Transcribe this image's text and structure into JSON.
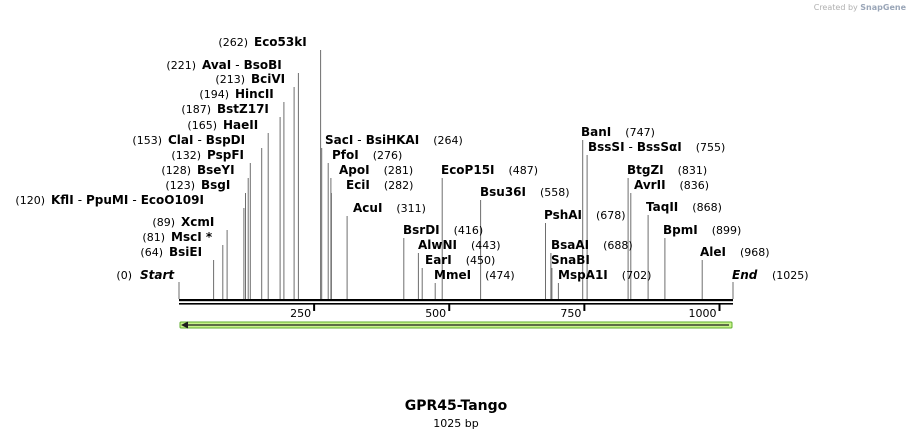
{
  "credit": {
    "prefix": "Created by",
    "brand": "SnapGene"
  },
  "title": "GPR45-Tango",
  "length_label": "1025 bp",
  "sequence_length": 1025,
  "colors": {
    "feature_fill": "#c9f28c",
    "feature_stroke": "#5fae2e",
    "feature_arrow": "#1d1d1d"
  },
  "feature": {
    "start": 1,
    "end": 1025,
    "direction": "reverse"
  },
  "ticks": [
    {
      "pos": 250,
      "label": "250"
    },
    {
      "pos": 500,
      "label": "500"
    },
    {
      "pos": 750,
      "label": "750"
    },
    {
      "pos": 1000,
      "label": "1000"
    }
  ],
  "ends": [
    {
      "pos": 0,
      "name": "Start",
      "label": "(0)"
    },
    {
      "pos": 1025,
      "name": "End",
      "label": "(1025)"
    }
  ],
  "sites": [
    {
      "pos": 64,
      "names": [
        "BsiEI"
      ],
      "label": "(64)"
    },
    {
      "pos": 81,
      "names": [
        "MscI *"
      ],
      "label": "(81)"
    },
    {
      "pos": 89,
      "names": [
        "XcmI"
      ],
      "label": "(89)"
    },
    {
      "pos": 120,
      "names": [
        "KflI",
        "PpuMI",
        "EcoO109I"
      ],
      "label": "(120)"
    },
    {
      "pos": 123,
      "names": [
        "BsgI"
      ],
      "label": "(123)"
    },
    {
      "pos": 128,
      "names": [
        "BseYI"
      ],
      "label": "(128)"
    },
    {
      "pos": 132,
      "names": [
        "PspFI"
      ],
      "label": "(132)"
    },
    {
      "pos": 153,
      "names": [
        "ClaI",
        "BspDI"
      ],
      "label": "(153)"
    },
    {
      "pos": 165,
      "names": [
        "HaeII"
      ],
      "label": "(165)"
    },
    {
      "pos": 187,
      "names": [
        "BstZ17I"
      ],
      "label": "(187)"
    },
    {
      "pos": 194,
      "names": [
        "HincII"
      ],
      "label": "(194)"
    },
    {
      "pos": 213,
      "names": [
        "BciVI"
      ],
      "label": "(213)"
    },
    {
      "pos": 221,
      "names": [
        "AvaI",
        "BsoBI"
      ],
      "label": "(221)"
    },
    {
      "pos": 262,
      "names": [
        "Eco53kI"
      ],
      "label": "(262)"
    },
    {
      "pos": 264,
      "names": [
        "SacI",
        "BsiHKAI"
      ],
      "label": "(264)"
    },
    {
      "pos": 276,
      "names": [
        "PfoI"
      ],
      "label": "(276)"
    },
    {
      "pos": 281,
      "names": [
        "ApoI"
      ],
      "label": "(281)"
    },
    {
      "pos": 282,
      "names": [
        "EciI"
      ],
      "label": "(282)"
    },
    {
      "pos": 311,
      "names": [
        "AcuI"
      ],
      "label": "(311)"
    },
    {
      "pos": 416,
      "names": [
        "BsrDI"
      ],
      "label": "(416)"
    },
    {
      "pos": 443,
      "names": [
        "AlwNI"
      ],
      "label": "(443)"
    },
    {
      "pos": 450,
      "names": [
        "EarI"
      ],
      "label": "(450)"
    },
    {
      "pos": 474,
      "names": [
        "MmeI"
      ],
      "label": "(474)"
    },
    {
      "pos": 487,
      "names": [
        "EcoP15I"
      ],
      "label": "(487)"
    },
    {
      "pos": 558,
      "names": [
        "Bsu36I"
      ],
      "label": "(558)"
    },
    {
      "pos": 678,
      "names": [
        "PshAI"
      ],
      "label": "(678)"
    },
    {
      "pos": 688,
      "names": [
        "BsaAI"
      ],
      "label": "(688)"
    },
    {
      "pos": 690,
      "names": [
        "SnaBI"
      ],
      "label": ""
    },
    {
      "pos": 702,
      "names": [
        "MspA1I"
      ],
      "label": "(702)"
    },
    {
      "pos": 747,
      "names": [
        "BanI"
      ],
      "label": "(747)"
    },
    {
      "pos": 755,
      "names": [
        "BssSI",
        "BssSαI"
      ],
      "label": "(755)"
    },
    {
      "pos": 831,
      "names": [
        "BtgZI"
      ],
      "label": "(831)"
    },
    {
      "pos": 836,
      "names": [
        "AvrII"
      ],
      "label": "(836)"
    },
    {
      "pos": 868,
      "names": [
        "TaqII"
      ],
      "label": "(868)"
    },
    {
      "pos": 899,
      "names": [
        "BpmI"
      ],
      "label": "(899)"
    },
    {
      "pos": 968,
      "names": [
        "AleI"
      ],
      "label": "(968)"
    }
  ]
}
